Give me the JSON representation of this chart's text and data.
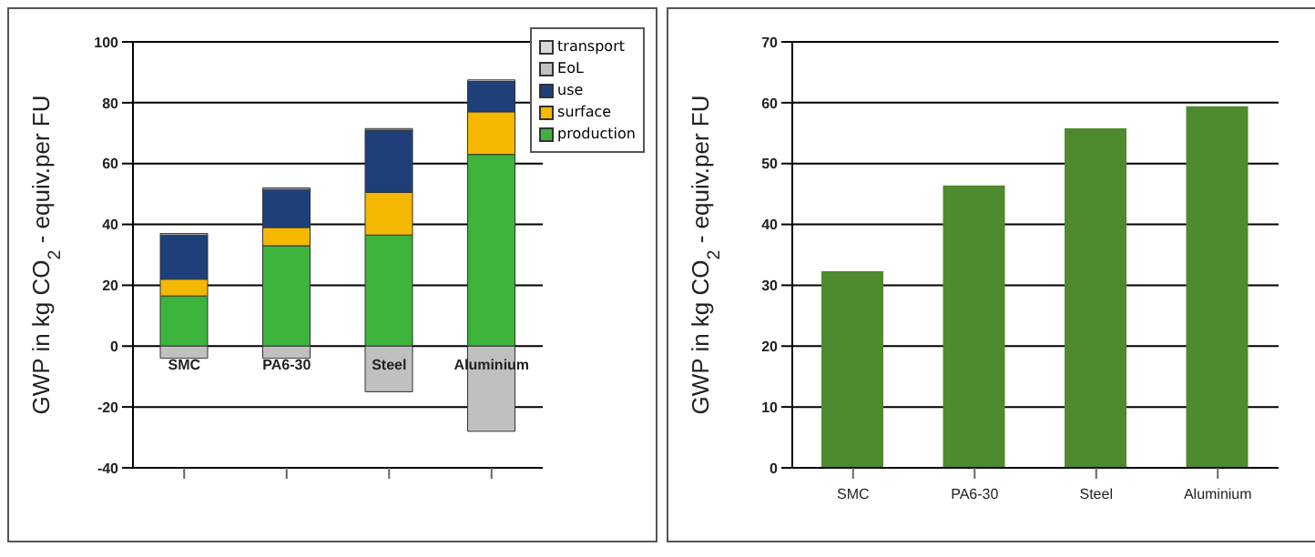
{
  "chart_data": [
    {
      "type": "bar",
      "stacked": true,
      "ylabel": "GWP in kg CO$_{2}$ - equiv.per FU",
      "categories": [
        "SMC",
        "PA6-30",
        "Steel",
        "Aluminium"
      ],
      "series": [
        {
          "name": "production",
          "color": "#3cb43c",
          "values": [
            16.5,
            33,
            36.5,
            63
          ]
        },
        {
          "name": "surface",
          "color": "#f5b800",
          "values": [
            5.5,
            6,
            14,
            14
          ]
        },
        {
          "name": "use",
          "color": "#1f3f7a",
          "values": [
            14.5,
            12.5,
            20.5,
            10
          ]
        },
        {
          "name": "EoL",
          "color": "#c0c0c0",
          "values": [
            -4,
            -4,
            -15,
            -28
          ]
        },
        {
          "name": "transport",
          "color": "#d9d9d9",
          "values": [
            0.5,
            0.5,
            0.5,
            0.5
          ]
        }
      ],
      "ylim": [
        -40,
        100
      ],
      "yticks": [
        -40,
        -20,
        0,
        20,
        40,
        60,
        80,
        100
      ],
      "grid": "y",
      "legend": "top right"
    },
    {
      "type": "bar",
      "ylabel": "GWP in kg CO$_{2}$ - equiv.per FU",
      "categories": [
        "SMC",
        "PA6-30",
        "Steel",
        "Aluminium"
      ],
      "values": [
        32.3,
        46.4,
        55.8,
        59.4
      ],
      "color": "#4e8a2e",
      "ylim": [
        0,
        70
      ],
      "yticks": [
        0,
        10,
        20,
        30,
        40,
        50,
        60,
        70
      ],
      "grid": "y"
    }
  ]
}
